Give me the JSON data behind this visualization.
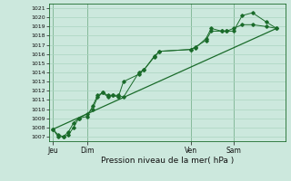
{
  "title": "Pression niveau de la mer( hPa )",
  "bg_color": "#cce8dd",
  "grid_color": "#aad4c0",
  "line_color": "#1a6b2a",
  "ylim": [
    1006.5,
    1021.5
  ],
  "yticks": [
    1007,
    1008,
    1009,
    1010,
    1011,
    1012,
    1013,
    1014,
    1015,
    1016,
    1017,
    1018,
    1019,
    1020,
    1021
  ],
  "day_labels": [
    "Jeu",
    "Dim",
    "Ven",
    "Sam"
  ],
  "day_positions": [
    0,
    40,
    160,
    210
  ],
  "xlim": [
    -4,
    270
  ],
  "series1_x": [
    0,
    6,
    12,
    18,
    24,
    30,
    40,
    46,
    52,
    58,
    64,
    70,
    76,
    82,
    100,
    106,
    118,
    124,
    160,
    166,
    178,
    184,
    196,
    202,
    210,
    220,
    232,
    248,
    260
  ],
  "series1_y": [
    1007.8,
    1007.0,
    1007.0,
    1007.5,
    1008.5,
    1009.0,
    1009.5,
    1010.0,
    1011.3,
    1011.8,
    1011.5,
    1011.5,
    1011.5,
    1011.3,
    1014.0,
    1014.3,
    1015.8,
    1016.3,
    1016.5,
    1016.7,
    1017.7,
    1018.8,
    1018.5,
    1018.5,
    1018.5,
    1020.2,
    1020.5,
    1019.5,
    1018.8
  ],
  "series2_x": [
    0,
    6,
    12,
    18,
    24,
    30,
    40,
    46,
    52,
    58,
    64,
    70,
    76,
    82,
    100,
    106,
    118,
    124,
    160,
    166,
    178,
    184,
    196,
    202,
    210,
    220,
    232,
    248,
    260
  ],
  "series2_y": [
    1007.8,
    1007.2,
    1007.0,
    1007.2,
    1008.0,
    1009.0,
    1009.2,
    1010.3,
    1011.5,
    1011.8,
    1011.3,
    1011.5,
    1011.3,
    1013.0,
    1013.8,
    1014.3,
    1015.7,
    1016.3,
    1016.5,
    1016.8,
    1017.5,
    1018.5,
    1018.5,
    1018.5,
    1018.8,
    1019.2,
    1019.2,
    1019.0,
    1018.8
  ],
  "trend_x": [
    0,
    260
  ],
  "trend_y": [
    1007.8,
    1018.8
  ]
}
